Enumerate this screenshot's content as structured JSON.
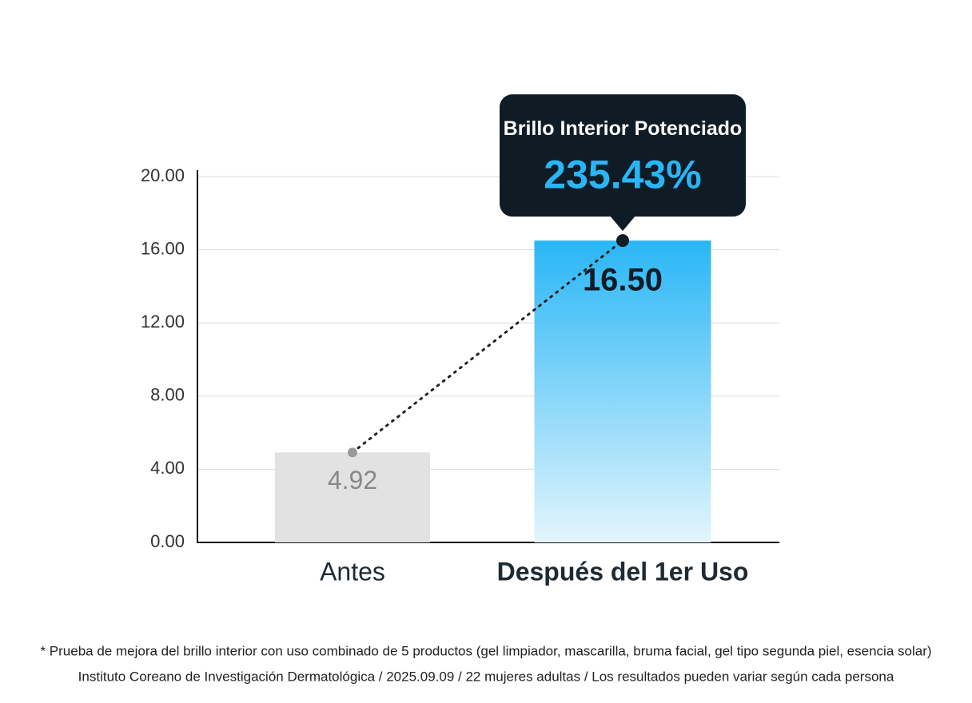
{
  "chart_data": {
    "type": "bar",
    "categories": [
      "Antes",
      "Después del 1er Uso"
    ],
    "values": [
      4.92,
      16.5
    ],
    "value_labels": [
      "4.92",
      "16.50"
    ],
    "colors": [
      "#e2e2e2",
      "#29b6f6"
    ],
    "ylim": [
      0,
      20
    ],
    "yticks": [
      {
        "value": 0,
        "label": "0.00"
      },
      {
        "value": 4,
        "label": "4.00"
      },
      {
        "value": 8,
        "label": "8.00"
      },
      {
        "value": 12,
        "label": "12.00"
      },
      {
        "value": 16,
        "label": "16.00"
      },
      {
        "value": 20,
        "label": "20.00"
      }
    ],
    "grid": true,
    "annotation": {
      "title": "Brillo Interior Potenciado",
      "value": "235.43%"
    },
    "footnotes": [
      "* Prueba de mejora del brillo interior con uso combinado de 5 productos (gel limpiador, mascarilla, bruma facial, gel tipo segunda piel, esencia solar)",
      "Instituto Coreano de Investigación Dermatológica / 2025.09.09 / 22 mujeres adultas / Los resultados pueden variar según cada persona"
    ]
  }
}
